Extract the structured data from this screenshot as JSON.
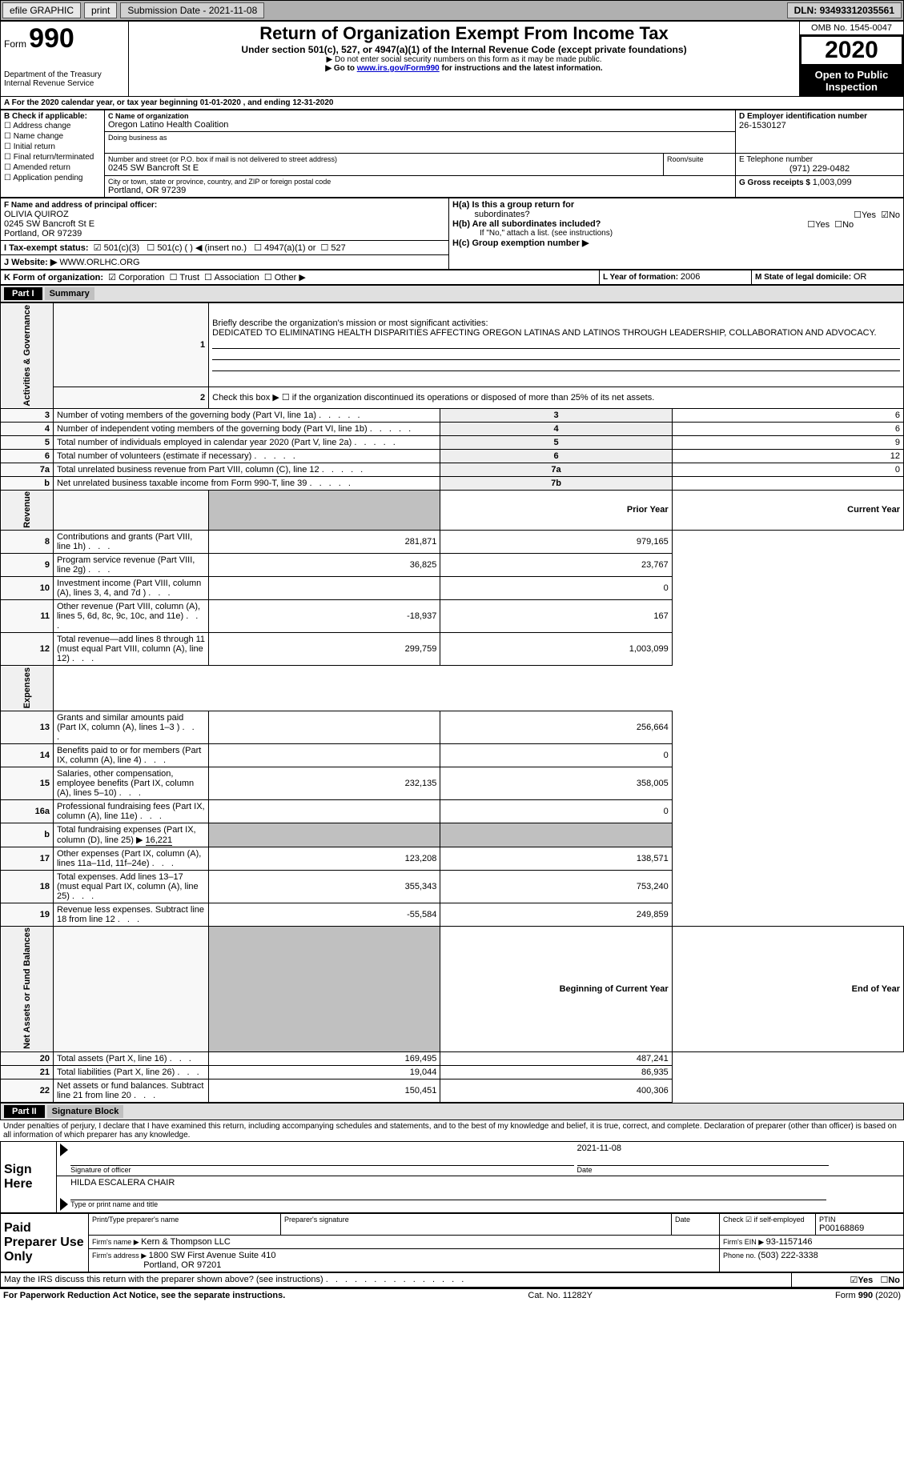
{
  "topbar": {
    "efile": "efile GRAPHIC",
    "print": "print",
    "submission_label": "Submission Date - ",
    "submission_date": "2021-11-08",
    "dln_label": "DLN: ",
    "dln": "93493312035561"
  },
  "header": {
    "form_label": "Form",
    "form_no": "990",
    "dept1": "Department of the Treasury",
    "dept2": "Internal Revenue Service",
    "title": "Return of Organization Exempt From Income Tax",
    "sub1": "Under section 501(c), 527, or 4947(a)(1) of the Internal Revenue Code (except private foundations)",
    "sub2": "▶ Do not enter social security numbers on this form as it may be made public.",
    "sub3_pre": "▶ Go to ",
    "sub3_link": "www.irs.gov/Form990",
    "sub3_post": " for instructions and the latest information.",
    "omb": "OMB No. 1545-0047",
    "year": "2020",
    "otp1": "Open to Public",
    "otp2": "Inspection"
  },
  "sectionA": {
    "line": "A For the 2020 calendar year, or tax year beginning 01-01-2020   , and ending 12-31-2020"
  },
  "boxB": {
    "hdr": "B Check if applicable:",
    "items": [
      "Address change",
      "Name change",
      "Initial return",
      "Final return/terminated",
      "Amended return",
      "Application pending"
    ]
  },
  "boxC": {
    "name_lbl": "C Name of organization",
    "name": "Oregon Latino Health Coalition",
    "dba_lbl": "Doing business as",
    "street_lbl": "Number and street (or P.O. box if mail is not delivered to street address)",
    "room_lbl": "Room/suite",
    "street": "0245 SW Bancroft St E",
    "city_lbl": "City or town, state or province, country, and ZIP or foreign postal code",
    "city": "Portland, OR  97239"
  },
  "boxD": {
    "lbl": "D Employer identification number",
    "val": "26-1530127"
  },
  "boxE": {
    "lbl": "E Telephone number",
    "val": "(971) 229-0482"
  },
  "boxG": {
    "lbl": "G Gross receipts $ ",
    "val": "1,003,099"
  },
  "boxF": {
    "lbl": "F Name and address of principal officer:",
    "name": "OLIVIA QUIROZ",
    "addr1": "0245 SW Bancroft St E",
    "addr2": "Portland, OR  97239"
  },
  "boxH": {
    "a1": "H(a)  Is this a group return for",
    "a2": "subordinates?",
    "b1": "H(b)  Are all subordinates included?",
    "note": "If \"No,\" attach a list. (see instructions)",
    "c": "H(c)  Group exemption number ▶",
    "yes": "Yes",
    "no": "No"
  },
  "boxI": {
    "lbl": "I    Tax-exempt status:",
    "o1": "501(c)(3)",
    "o2": "501(c) (  ) ◀ (insert no.)",
    "o3": "4947(a)(1) or",
    "o4": "527"
  },
  "boxJ": {
    "lbl": "J   Website: ▶  ",
    "val": "WWW.ORLHC.ORG"
  },
  "boxK": {
    "lbl": "K Form of organization:",
    "o1": "Corporation",
    "o2": "Trust",
    "o3": "Association",
    "o4": "Other ▶"
  },
  "boxL": {
    "lbl": "L Year of formation: ",
    "val": "2006"
  },
  "boxM": {
    "lbl": "M State of legal domicile: ",
    "val": "OR"
  },
  "part1": {
    "hdr": "Part I",
    "title": "Summary"
  },
  "gov": {
    "l1": "Briefly describe the organization's mission or most significant activities:",
    "mission": "DEDICATED TO ELIMINATING HEALTH DISPARITIES AFFECTING OREGON LATINAS AND LATINOS THROUGH LEADERSHIP, COLLABORATION AND ADVOCACY.",
    "l2": "Check this box ▶ ☐  if the organization discontinued its operations or disposed of more than 25% of its net assets.",
    "rows": [
      {
        "n": "3",
        "t": "Number of voting members of the governing body (Part VI, line 1a)",
        "b": "3",
        "v": "6"
      },
      {
        "n": "4",
        "t": "Number of independent voting members of the governing body (Part VI, line 1b)",
        "b": "4",
        "v": "6"
      },
      {
        "n": "5",
        "t": "Total number of individuals employed in calendar year 2020 (Part V, line 2a)",
        "b": "5",
        "v": "9"
      },
      {
        "n": "6",
        "t": "Total number of volunteers (estimate if necessary)",
        "b": "6",
        "v": "12"
      },
      {
        "n": "7a",
        "t": "Total unrelated business revenue from Part VIII, column (C), line 12",
        "b": "7a",
        "v": "0"
      },
      {
        "n": "b",
        "t": "Net unrelated business taxable income from Form 990-T, line 39",
        "b": "7b",
        "v": ""
      }
    ]
  },
  "colhdr": {
    "py": "Prior Year",
    "cy": "Current Year",
    "bcy": "Beginning of Current Year",
    "eoy": "End of Year"
  },
  "rev": {
    "rows": [
      {
        "n": "8",
        "t": "Contributions and grants (Part VIII, line 1h)",
        "py": "281,871",
        "cy": "979,165"
      },
      {
        "n": "9",
        "t": "Program service revenue (Part VIII, line 2g)",
        "py": "36,825",
        "cy": "23,767"
      },
      {
        "n": "10",
        "t": "Investment income (Part VIII, column (A), lines 3, 4, and 7d )",
        "py": "",
        "cy": "0"
      },
      {
        "n": "11",
        "t": "Other revenue (Part VIII, column (A), lines 5, 6d, 8c, 9c, 10c, and 11e)",
        "py": "-18,937",
        "cy": "167"
      },
      {
        "n": "12",
        "t": "Total revenue—add lines 8 through 11 (must equal Part VIII, column (A), line 12)",
        "py": "299,759",
        "cy": "1,003,099"
      }
    ]
  },
  "exp": {
    "rows": [
      {
        "n": "13",
        "t": "Grants and similar amounts paid (Part IX, column (A), lines 1–3 )",
        "py": "",
        "cy": "256,664"
      },
      {
        "n": "14",
        "t": "Benefits paid to or for members (Part IX, column (A), line 4)",
        "py": "",
        "cy": "0"
      },
      {
        "n": "15",
        "t": "Salaries, other compensation, employee benefits (Part IX, column (A), lines 5–10)",
        "py": "232,135",
        "cy": "358,005"
      },
      {
        "n": "16a",
        "t": "Professional fundraising fees (Part IX, column (A), line 11e)",
        "py": "",
        "cy": "0"
      }
    ],
    "l16b_pre": "Total fundraising expenses (Part IX, column (D), line 25) ▶",
    "l16b_val": "16,221",
    "rows2": [
      {
        "n": "17",
        "t": "Other expenses (Part IX, column (A), lines 11a–11d, 11f–24e)",
        "py": "123,208",
        "cy": "138,571"
      },
      {
        "n": "18",
        "t": "Total expenses. Add lines 13–17 (must equal Part IX, column (A), line 25)",
        "py": "355,343",
        "cy": "753,240"
      },
      {
        "n": "19",
        "t": "Revenue less expenses. Subtract line 18 from line 12",
        "py": "-55,584",
        "cy": "249,859"
      }
    ]
  },
  "na": {
    "rows": [
      {
        "n": "20",
        "t": "Total assets (Part X, line 16)",
        "py": "169,495",
        "cy": "487,241"
      },
      {
        "n": "21",
        "t": "Total liabilities (Part X, line 26)",
        "py": "19,044",
        "cy": "86,935"
      },
      {
        "n": "22",
        "t": "Net assets or fund balances. Subtract line 21 from line 20",
        "py": "150,451",
        "cy": "400,306"
      }
    ]
  },
  "part2": {
    "hdr": "Part II",
    "title": "Signature Block"
  },
  "sig": {
    "penalty": "Under penalties of perjury, I declare that I have examined this return, including accompanying schedules and statements, and to the best of my knowledge and belief, it is true, correct, and complete. Declaration of preparer (other than officer) is based on all information of which preparer has any knowledge.",
    "signhere": "Sign Here",
    "sig_officer": "Signature of officer",
    "date_lbl": "Date",
    "date": "2021-11-08",
    "name": "HILDA ESCALERA CHAIR",
    "typeprint": "Type or print name and title",
    "paid": "Paid Preparer Use Only",
    "prep_name_lbl": "Print/Type preparer's name",
    "prep_sig_lbl": "Preparer's signature",
    "check_lbl": "Check ☑ if self-employed",
    "ptin_lbl": "PTIN",
    "ptin": "P00168869",
    "firm_name_lbl": "Firm's name    ▶ ",
    "firm_name": "Kern & Thompson LLC",
    "firm_ein_lbl": "Firm's EIN ▶ ",
    "firm_ein": "93-1157146",
    "firm_addr_lbl": "Firm's address ▶ ",
    "firm_addr1": "1800 SW First Avenue Suite 410",
    "firm_addr2": "Portland, OR  97201",
    "phone_lbl": "Phone no. ",
    "phone": "(503) 222-3338",
    "discuss": "May the IRS discuss this return with the preparer shown above? (see instructions)",
    "yes": "Yes",
    "no": "No"
  },
  "footer": {
    "l": "For Paperwork Reduction Act Notice, see the separate instructions.",
    "c": "Cat. No. 11282Y",
    "r": "Form 990 (2020)"
  },
  "sidelabels": {
    "gov": "Activities & Governance",
    "rev": "Revenue",
    "exp": "Expenses",
    "na": "Net Assets or Fund Balances"
  }
}
